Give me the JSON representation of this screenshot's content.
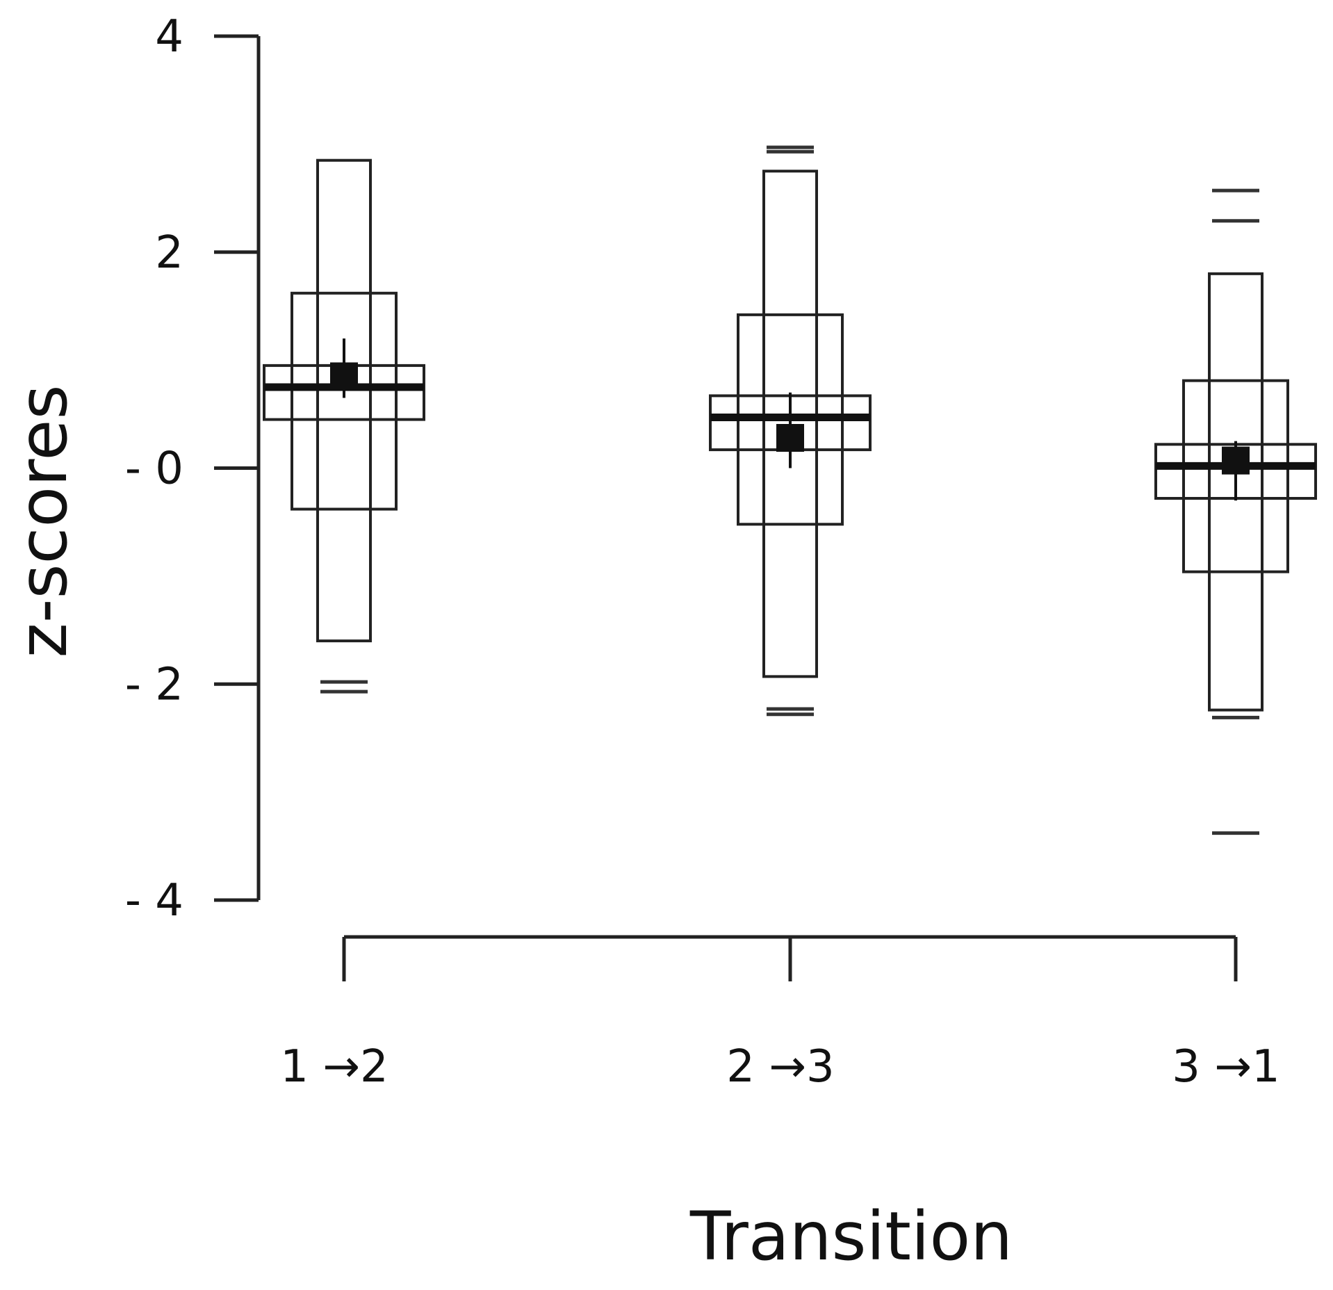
{
  "chart_data": {
    "type": "letter-value boxplot",
    "xlabel": "Transition",
    "ylabel": "z-scores",
    "ylim": [
      -4,
      4
    ],
    "y_ticks": [
      {
        "value": 4,
        "label": "4"
      },
      {
        "value": 2,
        "label": "2"
      },
      {
        "value": 0,
        "label": "- 0"
      },
      {
        "value": -2,
        "label": "- 2"
      },
      {
        "value": -4,
        "label": "- 4"
      }
    ],
    "categories": [
      "1 →2",
      "2 →3",
      "3 →1"
    ],
    "groups": [
      {
        "category": "1 →2",
        "median": 0.75,
        "boxes": [
          {
            "low": 0.45,
            "high": 0.95
          },
          {
            "low": -0.38,
            "high": 1.62
          },
          {
            "low": -1.6,
            "high": 2.85
          }
        ],
        "mean": 0.85,
        "mean_ci": [
          0.65,
          1.2
        ],
        "outliers": [
          -1.98,
          -2.07
        ]
      },
      {
        "category": "2 →3",
        "median": 0.47,
        "boxes": [
          {
            "low": 0.17,
            "high": 0.67
          },
          {
            "low": -0.52,
            "high": 1.42
          },
          {
            "low": -1.93,
            "high": 2.75
          }
        ],
        "mean": 0.28,
        "mean_ci": [
          0.0,
          0.7
        ],
        "outliers": [
          2.93,
          2.97,
          -2.23,
          -2.28
        ]
      },
      {
        "category": "3 →1",
        "median": 0.02,
        "boxes": [
          {
            "low": -0.28,
            "high": 0.22
          },
          {
            "low": -0.96,
            "high": 0.81
          },
          {
            "low": -2.24,
            "high": 1.8
          }
        ],
        "mean": 0.07,
        "mean_ci": [
          -0.3,
          0.25
        ],
        "outliers": [
          2.57,
          2.29,
          -2.31,
          -3.38
        ]
      }
    ]
  }
}
